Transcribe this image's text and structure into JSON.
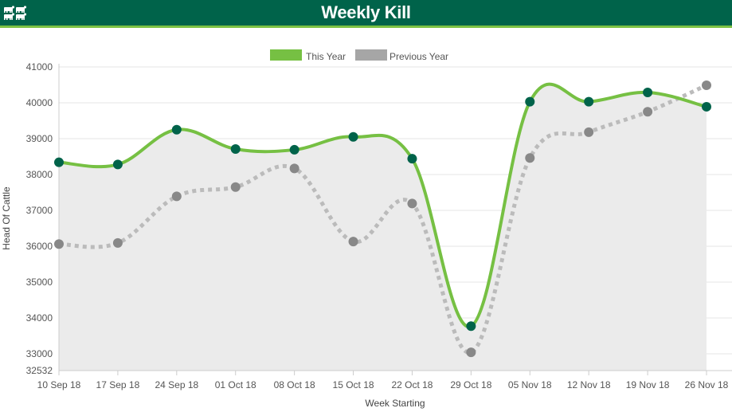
{
  "header": {
    "title": "Weekly Kill",
    "logo_icon": "cattle-herd-icon",
    "background_color": "#00634a",
    "accent_color": "#7bc143"
  },
  "chart_data": {
    "type": "line",
    "x_label": "Week Starting",
    "y_label": "Head Of Cattle",
    "categories": [
      "10 Sep 18",
      "17 Sep 18",
      "24 Sep 18",
      "01 Oct 18",
      "08 Oct 18",
      "15 Oct 18",
      "22 Oct 18",
      "29 Oct 18",
      "05 Nov 18",
      "12 Nov 18",
      "19 Nov 18",
      "26 Nov 18"
    ],
    "y_ticks": [
      32532,
      33000,
      34000,
      35000,
      36000,
      37000,
      38000,
      39000,
      40000,
      41000
    ],
    "ylim": [
      32532,
      41000
    ],
    "grid": true,
    "legend_position": "top-center",
    "series": [
      {
        "name": "This Year",
        "values": [
          38340,
          38280,
          39250,
          38710,
          38690,
          39050,
          38440,
          33770,
          40030,
          40030,
          40290,
          39890
        ],
        "line_color": "#76c043",
        "marker_color": "#00634a",
        "style": "solid",
        "fill_color": "#ebebeb"
      },
      {
        "name": "Previous Year",
        "values": [
          36060,
          36090,
          37390,
          37650,
          38170,
          36130,
          37190,
          33040,
          38460,
          39180,
          39750,
          40490
        ],
        "line_color": "#bbbbbb",
        "marker_color": "#888888",
        "style": "dotted"
      }
    ]
  }
}
